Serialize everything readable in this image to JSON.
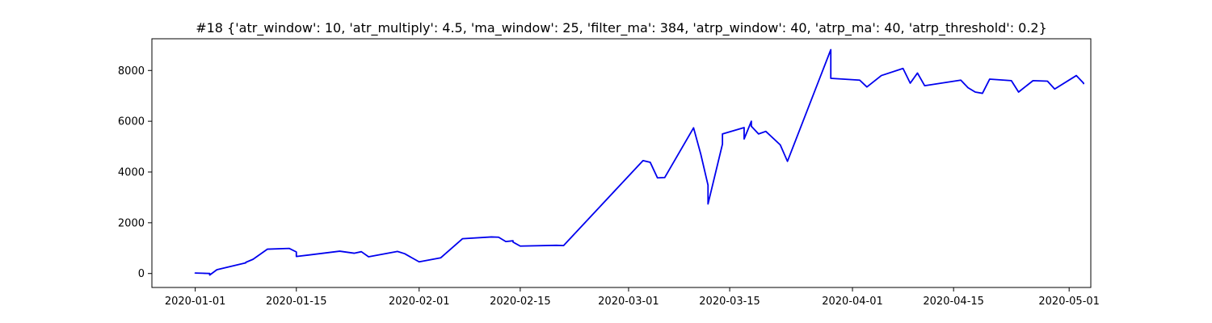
{
  "chart_data": {
    "type": "line",
    "title": "#18 {'atr_window': 10, 'atr_multiply': 4.5, 'ma_window': 25, 'filter_ma': 384, 'atrp_window': 40, 'atrp_ma': 40, 'atrp_threshold': 0.2}",
    "xlabel": "",
    "ylabel": "",
    "xlim": [
      "2019-12-26",
      "2020-05-04"
    ],
    "ylim": [
      -550,
      9250
    ],
    "x_ticks": [
      "2020-01-01",
      "2020-01-15",
      "2020-02-01",
      "2020-02-15",
      "2020-03-01",
      "2020-03-15",
      "2020-04-01",
      "2020-04-15",
      "2020-05-01"
    ],
    "y_ticks": [
      0,
      2000,
      4000,
      6000,
      8000
    ],
    "grid": false,
    "line_color": "#0000ee",
    "series": [
      {
        "points": [
          [
            "2020-01-01",
            0
          ],
          [
            "2020-01-01",
            20
          ],
          [
            "2020-01-02",
            10
          ],
          [
            "2020-01-03",
            0
          ],
          [
            "2020-01-03",
            -60
          ],
          [
            "2020-01-04",
            150
          ],
          [
            "2020-01-08",
            420
          ],
          [
            "2020-01-08",
            440
          ],
          [
            "2020-01-09",
            560
          ],
          [
            "2020-01-11",
            960
          ],
          [
            "2020-01-14",
            990
          ],
          [
            "2020-01-15",
            850
          ],
          [
            "2020-01-15",
            670
          ],
          [
            "2020-01-21",
            880
          ],
          [
            "2020-01-23",
            800
          ],
          [
            "2020-01-24",
            860
          ],
          [
            "2020-01-25",
            660
          ],
          [
            "2020-01-29",
            870
          ],
          [
            "2020-01-30",
            780
          ],
          [
            "2020-02-01",
            460
          ],
          [
            "2020-02-04",
            620
          ],
          [
            "2020-02-07",
            1370
          ],
          [
            "2020-02-11",
            1440
          ],
          [
            "2020-02-12",
            1430
          ],
          [
            "2020-02-13",
            1260
          ],
          [
            "2020-02-14",
            1290
          ],
          [
            "2020-02-14",
            1240
          ],
          [
            "2020-02-15",
            1080
          ],
          [
            "2020-02-20",
            1110
          ],
          [
            "2020-02-21",
            1100
          ],
          [
            "2020-03-03",
            4450
          ],
          [
            "2020-03-04",
            4380
          ],
          [
            "2020-03-05",
            3770
          ],
          [
            "2020-03-06",
            3780
          ],
          [
            "2020-03-10",
            5740
          ],
          [
            "2020-03-11",
            4700
          ],
          [
            "2020-03-12",
            3480
          ],
          [
            "2020-03-12",
            2740
          ],
          [
            "2020-03-14",
            5100
          ],
          [
            "2020-03-14",
            5500
          ],
          [
            "2020-03-17",
            5750
          ],
          [
            "2020-03-17",
            5300
          ],
          [
            "2020-03-18",
            6000
          ],
          [
            "2020-03-18",
            5800
          ],
          [
            "2020-03-19",
            5500
          ],
          [
            "2020-03-20",
            5600
          ],
          [
            "2020-03-22",
            5070
          ],
          [
            "2020-03-23",
            4420
          ],
          [
            "2020-03-29",
            8820
          ],
          [
            "2020-03-29",
            7690
          ],
          [
            "2020-04-02",
            7620
          ],
          [
            "2020-04-03",
            7350
          ],
          [
            "2020-04-05",
            7800
          ],
          [
            "2020-04-08",
            8080
          ],
          [
            "2020-04-09",
            7500
          ],
          [
            "2020-04-10",
            7900
          ],
          [
            "2020-04-11",
            7400
          ],
          [
            "2020-04-16",
            7620
          ],
          [
            "2020-04-17",
            7320
          ],
          [
            "2020-04-18",
            7150
          ],
          [
            "2020-04-19",
            7100
          ],
          [
            "2020-04-20",
            7660
          ],
          [
            "2020-04-23",
            7600
          ],
          [
            "2020-04-24",
            7150
          ],
          [
            "2020-04-26",
            7600
          ],
          [
            "2020-04-28",
            7580
          ],
          [
            "2020-04-29",
            7270
          ],
          [
            "2020-05-02",
            7800
          ],
          [
            "2020-05-03",
            7500
          ],
          [
            "2020-05-03",
            7460
          ]
        ]
      }
    ]
  }
}
